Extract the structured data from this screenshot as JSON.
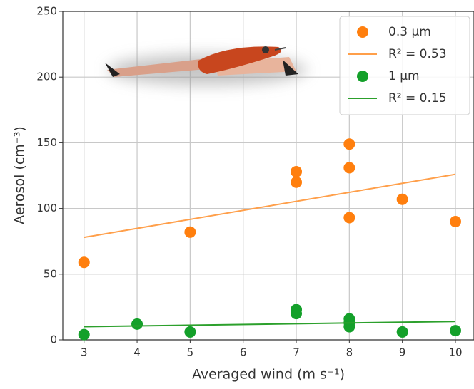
{
  "chart_data": {
    "type": "scatter",
    "xlabel": "Averaged wind (m s⁻¹)",
    "ylabel": "Aerosol (cm⁻³)",
    "xlim": [
      2.6,
      10.35
    ],
    "ylim": [
      0,
      250
    ],
    "xticks": [
      3,
      4,
      5,
      6,
      7,
      8,
      9,
      10
    ],
    "yticks": [
      0,
      50,
      100,
      150,
      200,
      250
    ],
    "grid": true,
    "legend": "upper right",
    "series": [
      {
        "name": "0.3 μm",
        "kind": "points",
        "color": "#ff7f0e",
        "x": [
          3,
          5,
          7,
          7,
          8,
          8,
          8,
          9,
          10
        ],
        "values": [
          59,
          82,
          128,
          120,
          149,
          131,
          93,
          107,
          90
        ]
      },
      {
        "name": "R² = 0.53",
        "kind": "line",
        "color": "#ff9f4a",
        "x": [
          3,
          10
        ],
        "values": [
          78,
          126
        ]
      },
      {
        "name": "1 μm",
        "kind": "points",
        "color": "#14a02a",
        "x": [
          3,
          4,
          5,
          7,
          7,
          8,
          8,
          8,
          9,
          10
        ],
        "values": [
          4,
          12,
          6,
          23,
          20,
          16,
          13,
          10,
          6,
          7
        ]
      },
      {
        "name": "R² = 0.15",
        "kind": "line",
        "color": "#2ca02c",
        "x": [
          3,
          10
        ],
        "values": [
          10,
          14
        ]
      }
    ]
  }
}
